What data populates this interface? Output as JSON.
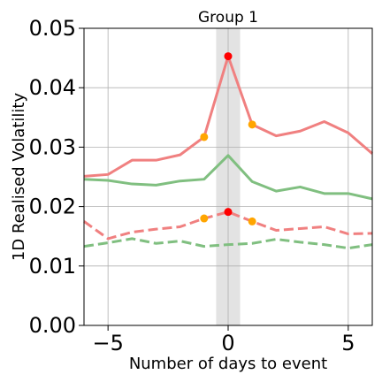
{
  "chart_data": {
    "type": "line",
    "title": "Group 1",
    "xlabel": "Number of days to event",
    "ylabel": "1D Realised Volatility",
    "xlim": [
      -6,
      6
    ],
    "ylim": [
      0,
      0.05
    ],
    "x_ticks": [
      -5,
      0,
      5
    ],
    "x_tick_labels": [
      "−5",
      "0",
      "5"
    ],
    "y_ticks": [
      0,
      0.01,
      0.02,
      0.03,
      0.04,
      0.05
    ],
    "y_tick_labels": [
      "0.00",
      "0.01",
      "0.02",
      "0.03",
      "0.04",
      "0.05"
    ],
    "grid": true,
    "shaded_region": [
      -0.5,
      0.5
    ],
    "x": [
      -6,
      -5,
      -4,
      -3,
      -2,
      -1,
      0,
      1,
      2,
      3,
      4,
      5,
      6
    ],
    "series": [
      {
        "color": "#f08080",
        "style": "solid",
        "values": [
          0.0251,
          0.0254,
          0.0278,
          0.0278,
          0.0287,
          0.0317,
          0.0453,
          0.0338,
          0.0319,
          0.0327,
          0.0343,
          0.0324,
          0.0289
        ]
      },
      {
        "color": "#80bf80",
        "style": "solid",
        "values": [
          0.0246,
          0.0244,
          0.0238,
          0.0236,
          0.0243,
          0.0246,
          0.0286,
          0.0242,
          0.0226,
          0.0233,
          0.0222,
          0.0222,
          0.0213
        ]
      },
      {
        "color": "#f08080",
        "style": "dashed",
        "values": [
          0.0175,
          0.0146,
          0.0157,
          0.0162,
          0.0166,
          0.018,
          0.0191,
          0.0175,
          0.016,
          0.0163,
          0.0166,
          0.0154,
          0.0155
        ]
      },
      {
        "color": "#80bf80",
        "style": "dashed",
        "values": [
          0.0133,
          0.0139,
          0.0146,
          0.0138,
          0.0142,
          0.0133,
          0.0136,
          0.0138,
          0.0145,
          0.014,
          0.0136,
          0.013,
          0.0136
        ]
      }
    ],
    "markers": [
      {
        "x": 0,
        "y": 0.0453,
        "color": "#ff0000"
      },
      {
        "x": -1,
        "y": 0.0317,
        "color": "#ffa500"
      },
      {
        "x": 1,
        "y": 0.0338,
        "color": "#ffa500"
      },
      {
        "x": 0,
        "y": 0.0191,
        "color": "#ff0000"
      },
      {
        "x": -1,
        "y": 0.018,
        "color": "#ffa500"
      },
      {
        "x": 1,
        "y": 0.0175,
        "color": "#ffa500"
      }
    ]
  }
}
